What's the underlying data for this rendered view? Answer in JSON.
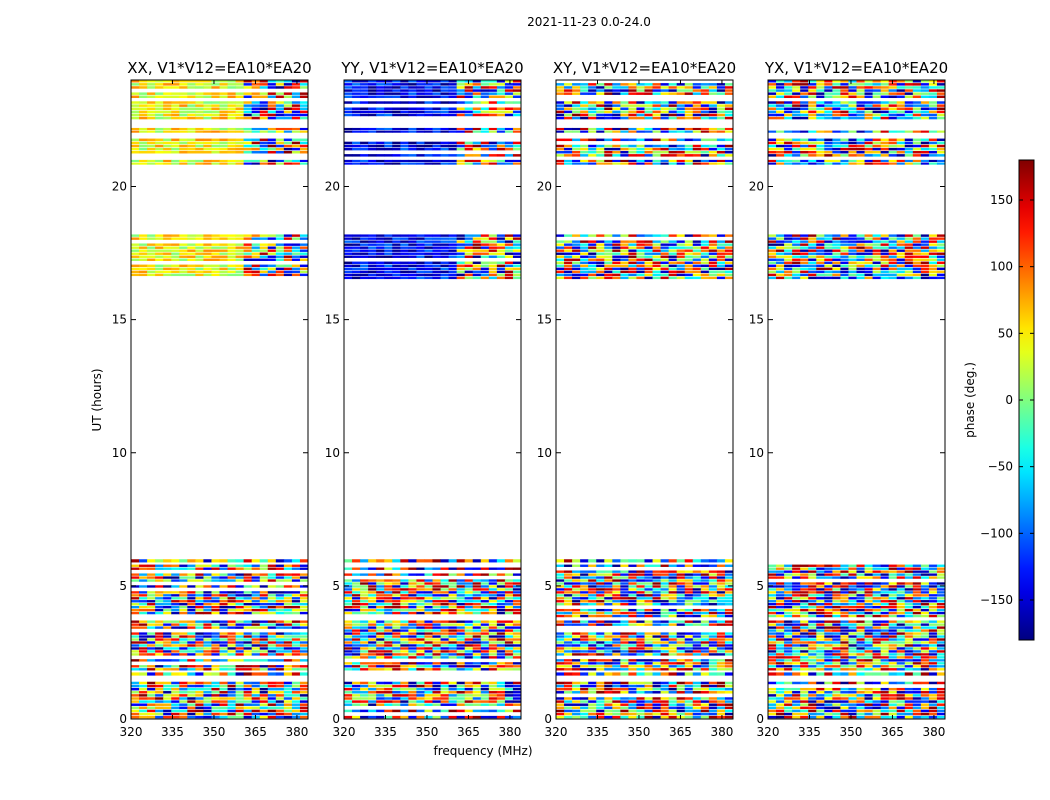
{
  "chart_data": {
    "type": "heatmap",
    "suptitle": "2021-11-23 0.0-24.0",
    "xlabel": "frequency (MHz)",
    "ylabel": "UT (hours)",
    "xlim": [
      320,
      384
    ],
    "ylim": [
      0,
      24
    ],
    "xticks": [
      320,
      335,
      350,
      365,
      380
    ],
    "yticks": [
      0,
      5,
      10,
      15,
      20
    ],
    "panels": [
      {
        "title": "XX, V1*V12=EA10*EA20",
        "pol": "XX"
      },
      {
        "title": "YY, V1*V12=EA10*EA20",
        "pol": "YY"
      },
      {
        "title": "XY, V1*V12=EA10*EA20",
        "pol": "XY"
      },
      {
        "title": "YX, V1*V12=EA10*EA20",
        "pol": "YX"
      }
    ],
    "data_segments_ut_hours": [
      [
        0.0,
        1.4
      ],
      [
        1.6,
        1.75
      ],
      [
        1.8,
        3.7
      ],
      [
        3.8,
        5.8
      ],
      [
        5.85,
        6.0
      ],
      [
        16.5,
        18.2
      ],
      [
        20.8,
        21.0
      ],
      [
        21.1,
        21.8
      ],
      [
        22.0,
        22.2
      ],
      [
        22.5,
        23.2
      ],
      [
        23.3,
        24.0
      ]
    ],
    "colorbar": {
      "label": "phase (deg.)",
      "range": [
        -180,
        180
      ],
      "ticks": [
        -150,
        -100,
        -50,
        0,
        50,
        100,
        150
      ],
      "tick_labels": [
        "−150",
        "−100",
        "−50",
        "0",
        "50",
        "100",
        "150"
      ],
      "colormap": "jet"
    }
  }
}
